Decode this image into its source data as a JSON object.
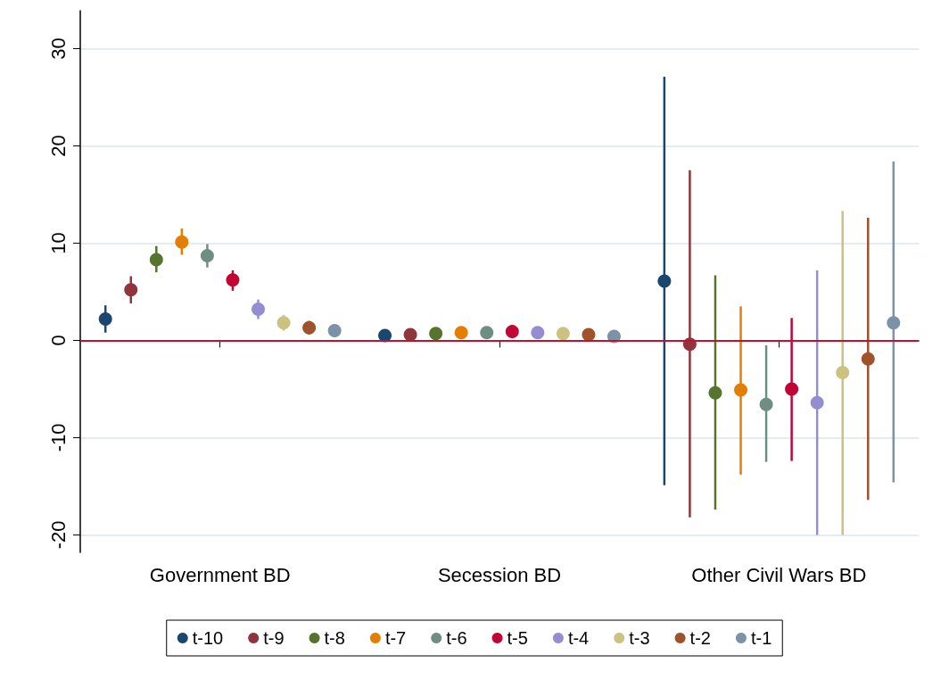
{
  "chart_data": {
    "type": "scatter",
    "categories": [
      "Government BD",
      "Secession BD",
      "Other Civil Wars BD"
    ],
    "ylim": [
      -21.8,
      33.9
    ],
    "yticks": [
      -20,
      -10,
      0,
      10,
      20,
      30
    ],
    "grid": "y",
    "legend": "bottom",
    "marker": "circle",
    "ref_lines": [
      {
        "axis": "y",
        "value": 0,
        "color": "#c8102e"
      }
    ],
    "series": [
      {
        "name": "t-10",
        "color": "#1a476f",
        "values": [
          2.2,
          0.5,
          6.1
        ],
        "errors": [
          [
            0.8,
            3.6
          ],
          null,
          [
            -14.9,
            27.1
          ]
        ]
      },
      {
        "name": "t-9",
        "color": "#90353b",
        "values": [
          5.2,
          0.6,
          -0.4
        ],
        "errors": [
          [
            3.8,
            6.6
          ],
          null,
          [
            -18.2,
            17.5
          ]
        ]
      },
      {
        "name": "t-8",
        "color": "#55752f",
        "values": [
          8.3,
          0.7,
          -5.4
        ],
        "errors": [
          [
            7.0,
            9.7
          ],
          null,
          [
            -17.4,
            6.7
          ]
        ]
      },
      {
        "name": "t-7",
        "color": "#e37e00",
        "values": [
          10.1,
          0.8,
          -5.1
        ],
        "errors": [
          [
            8.8,
            11.5
          ],
          null,
          [
            -13.8,
            3.5
          ]
        ]
      },
      {
        "name": "t-6",
        "color": "#6e8e84",
        "values": [
          8.7,
          0.8,
          -6.6
        ],
        "errors": [
          [
            7.5,
            9.9
          ],
          null,
          [
            -12.5,
            -0.5
          ]
        ]
      },
      {
        "name": "t-5",
        "color": "#c10534",
        "values": [
          6.2,
          0.9,
          -5.0
        ],
        "errors": [
          [
            5.1,
            7.2
          ],
          null,
          [
            -12.4,
            2.3
          ]
        ]
      },
      {
        "name": "t-4",
        "color": "#938dd2",
        "values": [
          3.2,
          0.8,
          -6.4
        ],
        "errors": [
          [
            2.2,
            4.2
          ],
          null,
          [
            -20,
            7.2
          ]
        ]
      },
      {
        "name": "t-3",
        "color": "#cac27e",
        "values": [
          1.8,
          0.7,
          -3.3
        ],
        "errors": [
          [
            1.0,
            2.6
          ],
          null,
          [
            -20,
            13.3
          ]
        ]
      },
      {
        "name": "t-2",
        "color": "#a0522d",
        "values": [
          1.3,
          0.6,
          -1.9
        ],
        "errors": [
          [
            0.6,
            2.0
          ],
          null,
          [
            -16.4,
            12.6
          ]
        ]
      },
      {
        "name": "t-1",
        "color": "#7b92a8",
        "values": [
          1.0,
          0.4,
          1.8
        ],
        "errors": [
          null,
          null,
          [
            -14.6,
            18.4
          ]
        ]
      }
    ]
  }
}
